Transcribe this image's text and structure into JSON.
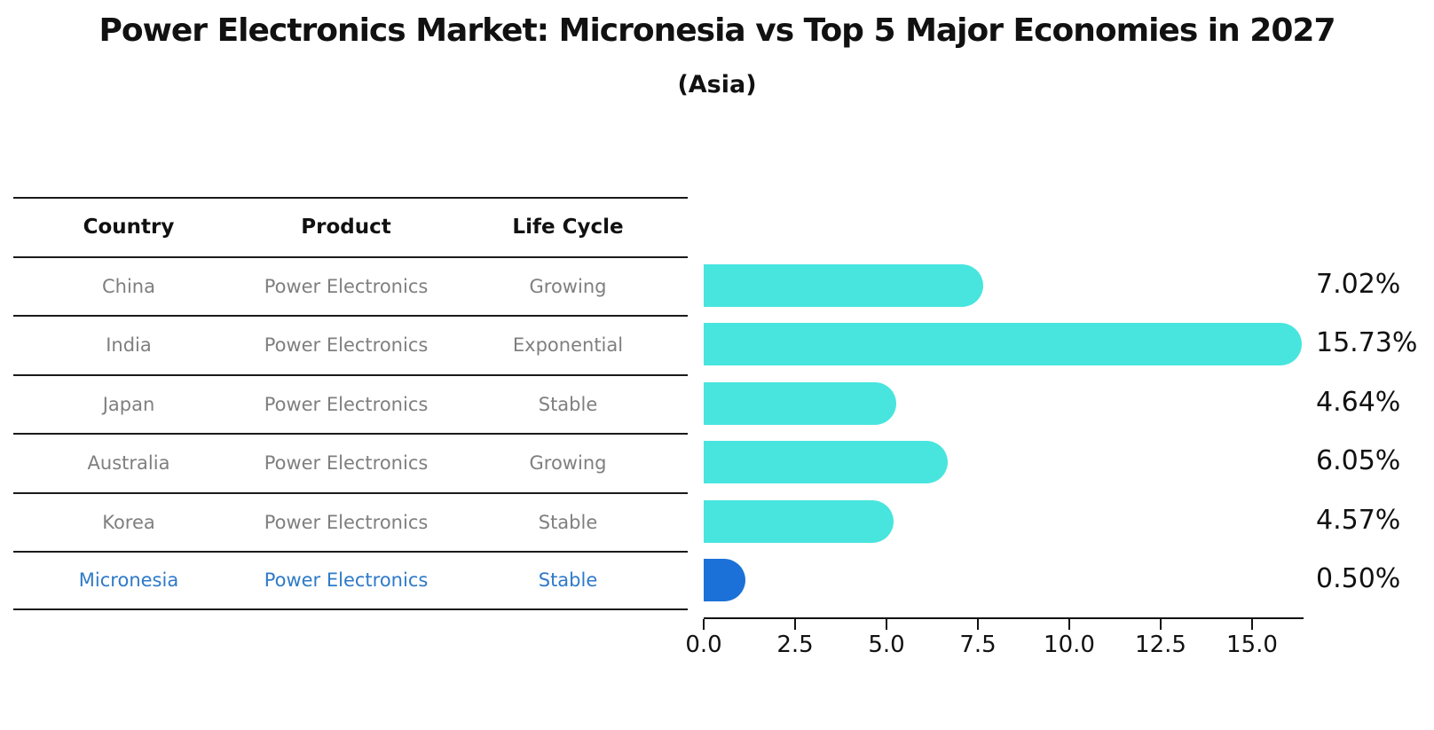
{
  "title": "Power Electronics Market: Micronesia vs Top 5 Major Economies in 2027",
  "subtitle": "(Asia)",
  "table": {
    "headers": [
      "Country",
      "Product",
      "Life Cycle"
    ],
    "rows": [
      {
        "country": "China",
        "product": "Power Electronics",
        "life_cycle": "Growing",
        "highlight": false
      },
      {
        "country": "India",
        "product": "Power Electronics",
        "life_cycle": "Exponential",
        "highlight": false
      },
      {
        "country": "Japan",
        "product": "Power Electronics",
        "life_cycle": "Stable",
        "highlight": false
      },
      {
        "country": "Australia",
        "product": "Power Electronics",
        "life_cycle": "Growing",
        "highlight": false
      },
      {
        "country": "Korea",
        "product": "Power Electronics",
        "life_cycle": "Stable",
        "highlight": false
      },
      {
        "country": "Micronesia",
        "product": "Power Electronics",
        "life_cycle": "Stable",
        "highlight": true
      }
    ]
  },
  "chart_data": {
    "type": "bar",
    "orientation": "horizontal",
    "title": "Power Electronics Market: Micronesia vs Top 5 Major Economies in 2027",
    "subtitle": "(Asia)",
    "categories": [
      "China",
      "India",
      "Japan",
      "Australia",
      "Korea",
      "Micronesia"
    ],
    "values": [
      7.02,
      15.73,
      4.64,
      6.05,
      4.57,
      0.5
    ],
    "value_labels": [
      "7.02%",
      "15.73%",
      "4.64%",
      "6.05%",
      "4.57%",
      "0.50%"
    ],
    "xlim": [
      0,
      16.5
    ],
    "x_ticks": [
      0.0,
      2.5,
      5.0,
      7.5,
      10.0,
      12.5,
      15.0
    ],
    "x_tick_labels": [
      "0.0",
      "2.5",
      "5.0",
      "7.5",
      "10.0",
      "12.5",
      "15.0"
    ],
    "grid": false,
    "legend": "none",
    "bar_color": "#48e5de",
    "highlight_color": "#1c71d8",
    "highlight_index": 5,
    "highlight_text_color": "#2e7ac8"
  }
}
